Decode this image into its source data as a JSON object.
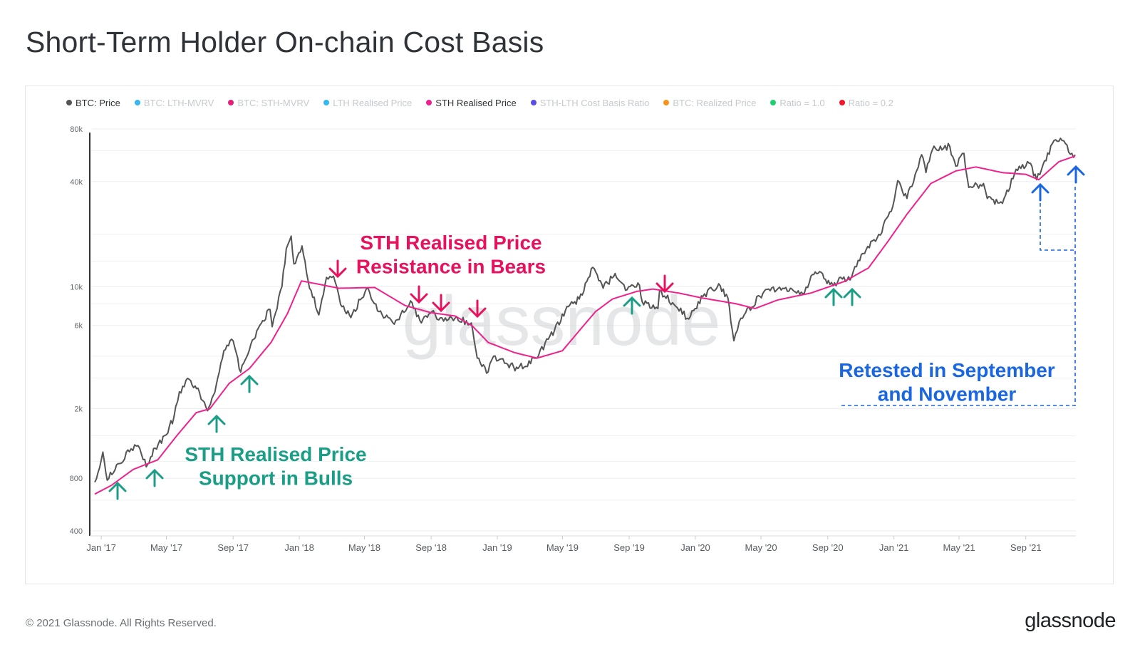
{
  "title": "Short-Term Holder On-chain Cost Basis",
  "footer": {
    "copyright": "© 2021 Glassnode. All Rights Reserved.",
    "logo": "glassnode"
  },
  "watermark": "glassnode",
  "legend": [
    {
      "label": "BTC: Price",
      "color": "#555555",
      "active": true
    },
    {
      "label": "BTC: LTH-MVRV",
      "color": "#35b8f0",
      "active": false
    },
    {
      "label": "BTC: STH-MVRV",
      "color": "#e3217a",
      "active": false
    },
    {
      "label": "LTH Realised Price",
      "color": "#35b8f0",
      "active": false
    },
    {
      "label": "STH Realised Price",
      "color": "#f0218c",
      "active": true
    },
    {
      "label": "STH-LTH Cost Basis Ratio",
      "color": "#5b4be6",
      "active": false
    },
    {
      "label": "BTC: Realized Price",
      "color": "#f7931a",
      "active": false
    },
    {
      "label": "Ratio = 1.0",
      "color": "#1fd16e",
      "active": false
    },
    {
      "label": "Ratio = 0.2",
      "color": "#f0182a",
      "active": false
    }
  ],
  "chart_data": {
    "type": "line",
    "yscale": "log",
    "ylim": [
      400,
      80000
    ],
    "y_ticks": [
      {
        "value": 400,
        "label": "400"
      },
      {
        "value": 800,
        "label": "800"
      },
      {
        "value": 2000,
        "label": "2k"
      },
      {
        "value": 6000,
        "label": "6k"
      },
      {
        "value": 10000,
        "label": "10k"
      },
      {
        "value": 40000,
        "label": "40k"
      },
      {
        "value": 80000,
        "label": "80k"
      }
    ],
    "x_ticks": [
      {
        "date": "2017-01-01",
        "label": "Jan '17"
      },
      {
        "date": "2017-05-01",
        "label": "May '17"
      },
      {
        "date": "2017-09-01",
        "label": "Sep '17"
      },
      {
        "date": "2018-01-01",
        "label": "Jan '18"
      },
      {
        "date": "2018-05-01",
        "label": "May '18"
      },
      {
        "date": "2018-09-01",
        "label": "Sep '18"
      },
      {
        "date": "2019-01-01",
        "label": "Jan '19"
      },
      {
        "date": "2019-05-01",
        "label": "May '19"
      },
      {
        "date": "2019-09-01",
        "label": "Sep '19"
      },
      {
        "date": "2020-01-01",
        "label": "Jan '20"
      },
      {
        "date": "2020-05-01",
        "label": "May '20"
      },
      {
        "date": "2020-09-01",
        "label": "Sep '20"
      },
      {
        "date": "2021-01-01",
        "label": "Jan '21"
      },
      {
        "date": "2021-05-01",
        "label": "May '21"
      },
      {
        "date": "2021-09-01",
        "label": "Sep '21"
      }
    ],
    "series": [
      {
        "name": "BTC: Price",
        "color": "#555555",
        "points": [
          [
            "2016-12-20",
            760
          ],
          [
            "2017-01-04",
            1130
          ],
          [
            "2017-01-12",
            780
          ],
          [
            "2017-02-01",
            970
          ],
          [
            "2017-02-25",
            1180
          ],
          [
            "2017-03-10",
            1230
          ],
          [
            "2017-03-25",
            930
          ],
          [
            "2017-04-10",
            1190
          ],
          [
            "2017-05-01",
            1420
          ],
          [
            "2017-05-15",
            1800
          ],
          [
            "2017-05-25",
            2500
          ],
          [
            "2017-06-12",
            2950
          ],
          [
            "2017-07-01",
            2480
          ],
          [
            "2017-07-16",
            1950
          ],
          [
            "2017-08-01",
            2750
          ],
          [
            "2017-08-15",
            4300
          ],
          [
            "2017-09-01",
            4900
          ],
          [
            "2017-09-15",
            3250
          ],
          [
            "2017-10-01",
            4350
          ],
          [
            "2017-10-20",
            6000
          ],
          [
            "2017-11-08",
            7400
          ],
          [
            "2017-11-12",
            5900
          ],
          [
            "2017-11-30",
            10000
          ],
          [
            "2017-12-08",
            16500
          ],
          [
            "2017-12-17",
            19500
          ],
          [
            "2017-12-22",
            13500
          ],
          [
            "2018-01-06",
            17100
          ],
          [
            "2018-01-17",
            10900
          ],
          [
            "2018-02-06",
            6900
          ],
          [
            "2018-02-20",
            11300
          ],
          [
            "2018-03-05",
            11500
          ],
          [
            "2018-03-18",
            7900
          ],
          [
            "2018-04-06",
            6650
          ],
          [
            "2018-05-05",
            9800
          ],
          [
            "2018-05-28",
            7200
          ],
          [
            "2018-06-25",
            6100
          ],
          [
            "2018-07-25",
            8300
          ],
          [
            "2018-08-14",
            6200
          ],
          [
            "2018-09-05",
            7300
          ],
          [
            "2018-09-15",
            6450
          ],
          [
            "2018-10-15",
            6600
          ],
          [
            "2018-11-14",
            6200
          ],
          [
            "2018-11-25",
            3900
          ],
          [
            "2018-12-15",
            3250
          ],
          [
            "2018-12-25",
            4000
          ],
          [
            "2019-01-20",
            3600
          ],
          [
            "2019-02-08",
            3400
          ],
          [
            "2019-03-15",
            3900
          ],
          [
            "2019-04-05",
            5000
          ],
          [
            "2019-05-15",
            7900
          ],
          [
            "2019-06-01",
            8500
          ],
          [
            "2019-06-26",
            12900
          ],
          [
            "2019-07-15",
            9800
          ],
          [
            "2019-08-06",
            11900
          ],
          [
            "2019-08-28",
            9600
          ],
          [
            "2019-09-20",
            10200
          ],
          [
            "2019-09-25",
            8200
          ],
          [
            "2019-10-24",
            7500
          ],
          [
            "2019-10-27",
            9500
          ],
          [
            "2019-11-20",
            8100
          ],
          [
            "2019-12-17",
            6600
          ],
          [
            "2020-01-15",
            8800
          ],
          [
            "2020-02-13",
            10400
          ],
          [
            "2020-03-01",
            8600
          ],
          [
            "2020-03-12",
            4900
          ],
          [
            "2020-03-25",
            6600
          ],
          [
            "2020-04-29",
            8800
          ],
          [
            "2020-05-15",
            9700
          ],
          [
            "2020-06-10",
            9800
          ],
          [
            "2020-07-20",
            9200
          ],
          [
            "2020-08-01",
            11500
          ],
          [
            "2020-08-17",
            12200
          ],
          [
            "2020-09-05",
            10300
          ],
          [
            "2020-10-15",
            11400
          ],
          [
            "2020-11-05",
            15500
          ],
          [
            "2020-12-01",
            19000
          ],
          [
            "2020-12-27",
            27000
          ],
          [
            "2021-01-08",
            40500
          ],
          [
            "2021-01-25",
            32000
          ],
          [
            "2021-02-21",
            57000
          ],
          [
            "2021-03-01",
            45000
          ],
          [
            "2021-03-13",
            61000
          ],
          [
            "2021-04-14",
            63500
          ],
          [
            "2021-04-25",
            49000
          ],
          [
            "2021-05-10",
            58000
          ],
          [
            "2021-05-19",
            37000
          ],
          [
            "2021-06-15",
            39000
          ],
          [
            "2021-06-22",
            32000
          ],
          [
            "2021-07-20",
            30000
          ],
          [
            "2021-08-14",
            47000
          ],
          [
            "2021-09-07",
            51000
          ],
          [
            "2021-09-21",
            41000
          ],
          [
            "2021-10-20",
            66000
          ],
          [
            "2021-11-10",
            68500
          ],
          [
            "2021-11-28",
            55000
          ],
          [
            "2021-12-01",
            57000
          ]
        ]
      },
      {
        "name": "STH Realised Price",
        "color": "#f0218c",
        "points": [
          [
            "2016-12-20",
            650
          ],
          [
            "2017-01-20",
            730
          ],
          [
            "2017-03-01",
            900
          ],
          [
            "2017-04-15",
            1020
          ],
          [
            "2017-05-20",
            1400
          ],
          [
            "2017-06-25",
            1900
          ],
          [
            "2017-07-20",
            2000
          ],
          [
            "2017-08-25",
            2800
          ],
          [
            "2017-10-01",
            3400
          ],
          [
            "2017-11-10",
            4800
          ],
          [
            "2017-12-10",
            7000
          ],
          [
            "2018-01-05",
            10800
          ],
          [
            "2018-02-15",
            10200
          ],
          [
            "2018-03-15",
            9800
          ],
          [
            "2018-05-20",
            9900
          ],
          [
            "2018-07-15",
            7800
          ],
          [
            "2018-09-01",
            7100
          ],
          [
            "2018-10-15",
            6800
          ],
          [
            "2018-11-15",
            6000
          ],
          [
            "2018-12-15",
            4800
          ],
          [
            "2019-02-01",
            4200
          ],
          [
            "2019-03-15",
            3900
          ],
          [
            "2019-05-01",
            4300
          ],
          [
            "2019-06-01",
            5600
          ],
          [
            "2019-07-01",
            7200
          ],
          [
            "2019-08-01",
            8500
          ],
          [
            "2019-09-15",
            9400
          ],
          [
            "2019-10-15",
            9700
          ],
          [
            "2019-12-01",
            9200
          ],
          [
            "2020-01-15",
            8600
          ],
          [
            "2020-03-15",
            8000
          ],
          [
            "2020-04-20",
            7500
          ],
          [
            "2020-06-01",
            8400
          ],
          [
            "2020-08-01",
            9200
          ],
          [
            "2020-10-01",
            10700
          ],
          [
            "2020-11-15",
            12800
          ],
          [
            "2020-12-20",
            18000
          ],
          [
            "2021-01-25",
            26000
          ],
          [
            "2021-03-10",
            39000
          ],
          [
            "2021-04-25",
            46000
          ],
          [
            "2021-06-01",
            48500
          ],
          [
            "2021-07-20",
            45000
          ],
          [
            "2021-09-01",
            44000
          ],
          [
            "2021-09-25",
            41000
          ],
          [
            "2021-11-01",
            52000
          ],
          [
            "2021-12-01",
            56000
          ]
        ]
      }
    ],
    "annotations": [
      {
        "text": "STH Realised Price\nResistance in Bears",
        "color": "#e8115d"
      },
      {
        "text": "STH Realised Price\nSupport in Bulls",
        "color": "#1a9e86"
      },
      {
        "text": "Retested in September\nand November",
        "color": "#1a66e0"
      }
    ]
  }
}
